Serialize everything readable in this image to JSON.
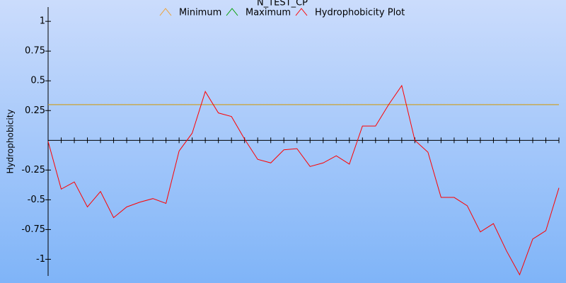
{
  "chart_data": {
    "type": "line",
    "title": "N_TEST_CP",
    "y_label": "Hydrophobicity",
    "x": [
      1,
      2,
      3,
      4,
      5,
      6,
      7,
      8,
      9,
      10,
      11,
      12,
      13,
      14,
      15,
      16,
      17,
      18,
      19,
      20,
      21,
      22,
      23,
      24,
      25,
      26,
      27,
      28,
      29,
      30,
      31,
      32,
      33,
      34,
      35,
      36,
      37,
      38,
      39,
      40
    ],
    "xlim": [
      1,
      40
    ],
    "xticks": [
      1,
      2,
      3,
      4,
      5,
      6,
      7,
      8,
      9,
      10,
      11,
      12,
      13,
      14,
      15,
      16,
      17,
      18,
      19,
      20,
      21,
      22,
      23,
      24,
      25,
      26,
      27,
      28,
      29,
      30,
      31,
      32,
      33,
      34,
      35,
      36,
      37,
      38,
      39,
      40
    ],
    "ylim": [
      -1.14,
      1.12
    ],
    "yticks": [
      1,
      0.75,
      0.5,
      0.25,
      -0.25,
      -0.5,
      -0.75,
      -1
    ],
    "series": [
      {
        "name": "Minimum",
        "color": "#f0a030",
        "values": [
          0.3,
          0.3,
          0.3,
          0.3,
          0.3,
          0.3,
          0.3,
          0.3,
          0.3,
          0.3,
          0.3,
          0.3,
          0.3,
          0.3,
          0.3,
          0.3,
          0.3,
          0.3,
          0.3,
          0.3,
          0.3,
          0.3,
          0.3,
          0.3,
          0.3,
          0.3,
          0.3,
          0.3,
          0.3,
          0.3,
          0.3,
          0.3,
          0.3,
          0.3,
          0.3,
          0.3,
          0.3,
          0.3,
          0.3,
          0.3
        ]
      },
      {
        "name": "Maximum",
        "color": "#00a000",
        "values": [
          0.3,
          0.3,
          0.3,
          0.3,
          0.3,
          0.3,
          0.3,
          0.3,
          0.3,
          0.3,
          0.3,
          0.3,
          0.3,
          0.3,
          0.3,
          0.3,
          0.3,
          0.3,
          0.3,
          0.3,
          0.3,
          0.3,
          0.3,
          0.3,
          0.3,
          0.3,
          0.3,
          0.3,
          0.3,
          0.3,
          0.3,
          0.3,
          0.3,
          0.3,
          0.3,
          0.3,
          0.3,
          0.3,
          0.3,
          0.3
        ]
      },
      {
        "name": "Hydrophobicity Plot",
        "color": "#ff0000",
        "values": [
          -0.01,
          -0.41,
          -0.35,
          -0.56,
          -0.43,
          -0.65,
          -0.56,
          -0.52,
          -0.49,
          -0.53,
          -0.09,
          0.06,
          0.41,
          0.23,
          0.2,
          0.01,
          -0.16,
          -0.19,
          -0.08,
          -0.07,
          -0.22,
          -0.19,
          -0.13,
          -0.2,
          0.12,
          0.12,
          0.3,
          0.46,
          0.0,
          -0.1,
          -0.48,
          -0.48,
          -0.55,
          -0.77,
          -0.7,
          -0.93,
          -1.13,
          -0.83,
          -0.76,
          -0.4
        ]
      }
    ]
  }
}
